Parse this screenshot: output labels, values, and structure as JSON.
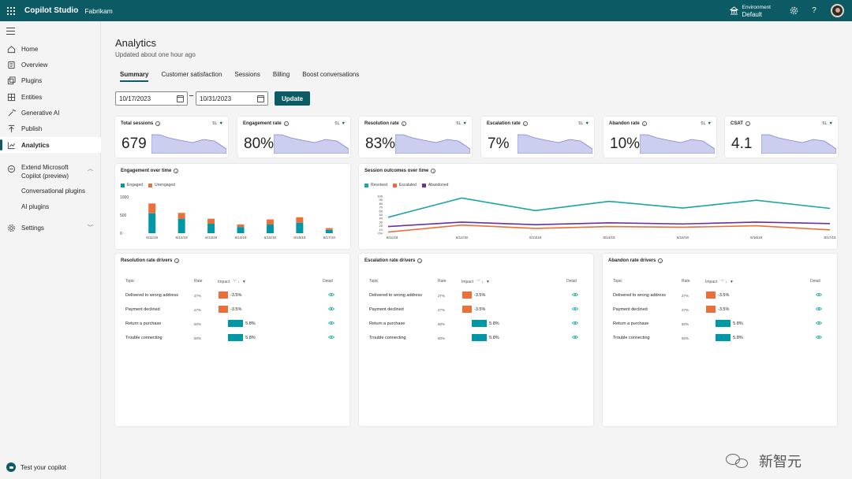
{
  "topbar": {
    "app_name": "Copilot Studio",
    "org_name": "Fabrikam",
    "environment_label": "Environment",
    "environment_value": "Default"
  },
  "sidebar": {
    "items": [
      {
        "label": "Home",
        "icon": "home-icon"
      },
      {
        "label": "Overview",
        "icon": "overview-icon"
      },
      {
        "label": "Plugins",
        "icon": "plugins-icon"
      },
      {
        "label": "Entities",
        "icon": "entities-icon"
      },
      {
        "label": "Generative AI",
        "icon": "sparkle-icon"
      },
      {
        "label": "Publish",
        "icon": "publish-icon"
      },
      {
        "label": "Analytics",
        "icon": "analytics-icon",
        "active": true
      }
    ],
    "extend_label_1": "Extend Microsoft",
    "extend_label_2": "Copilot (preview)",
    "sub_items": [
      "Conversational plugins",
      "AI plugins"
    ],
    "settings_label": "Settings",
    "test_label": "Test your copilot"
  },
  "page": {
    "title": "Analytics",
    "updated": "Updated about one hour ago",
    "tabs": [
      "Summary",
      "Customer satisfaction",
      "Sessions",
      "Billing",
      "Boost conversations"
    ],
    "start_date": "10/17/2023",
    "end_date": "10/31/2023",
    "update_label": "Update"
  },
  "kpis": [
    {
      "title": "Total sessions",
      "value": "679",
      "range": "5L"
    },
    {
      "title": "Engagement rate",
      "value": "80%",
      "range": "5L"
    },
    {
      "title": "Resolution rate",
      "value": "83%",
      "range": "5L"
    },
    {
      "title": "Escalation rate",
      "value": "7%",
      "range": "5L"
    },
    {
      "title": "Abandon rate",
      "value": "10%",
      "range": "5L"
    },
    {
      "title": "CSAT",
      "value": "4.1",
      "range": "5L"
    }
  ],
  "colors": {
    "brand": "#0c5a64",
    "engaged": "#0097a7",
    "unengaged": "#e8703a",
    "resolved": "#1aa5a5",
    "escalated": "#e8703a",
    "abandoned": "#6b2fa0",
    "spark": "#b9bdea"
  },
  "engagement_panel": {
    "title": "Engagement over time",
    "legend": [
      "Engaged",
      "Unengaged"
    ]
  },
  "outcomes_panel": {
    "title": "Session outcomes over time",
    "legend": [
      "Resolved",
      "Escalated",
      "Abandoned"
    ]
  },
  "chart_data": [
    {
      "type": "bar",
      "title": "Engagement over time",
      "stacked": true,
      "categories": [
        "6/11/19",
        "6/12/19",
        "6/13/19",
        "6/14/19",
        "6/15/19",
        "6/16/19",
        "6/17/19"
      ],
      "series": [
        {
          "name": "Engaged",
          "values": [
            550,
            400,
            260,
            170,
            240,
            290,
            90
          ]
        },
        {
          "name": "Unengaged",
          "values": [
            270,
            160,
            140,
            70,
            140,
            150,
            50
          ]
        }
      ],
      "yticks": [
        "1000",
        "500",
        "0"
      ],
      "ylim": [
        0,
        1000
      ],
      "legend": "top-left"
    },
    {
      "type": "line",
      "title": "Session outcomes over time",
      "categories": [
        "6/11/19",
        "6/12/19",
        "6/13/19",
        "6/14/19",
        "6/15/19",
        "6/16/19",
        "6/17/19"
      ],
      "series": [
        {
          "name": "Resolved",
          "values": [
            43,
            95,
            61,
            86,
            68,
            89,
            67
          ]
        },
        {
          "name": "Escalated",
          "values": [
            3,
            22,
            13,
            18,
            16,
            20,
            9
          ]
        },
        {
          "name": "Abandoned",
          "values": [
            18,
            30,
            23,
            28,
            25,
            30,
            26
          ]
        }
      ],
      "yticks": [
        "100",
        "90",
        "80",
        "70",
        "60",
        "50",
        "40",
        "30",
        "20",
        "10",
        "0%"
      ],
      "ylim": [
        0,
        100
      ],
      "legend": "top-left"
    }
  ],
  "drivers": [
    {
      "title": "Resolution rate drivers",
      "headers": {
        "topic": "Topic",
        "rate": "Rate",
        "impact": "Impact",
        "detail": "Detail"
      },
      "rows": [
        {
          "topic": "Delivered to wrong address",
          "rate": "27%",
          "impact": -3.5,
          "impact_label": "-3.5%"
        },
        {
          "topic": "Payment declined",
          "rate": "27%",
          "impact": -3.5,
          "impact_label": "-3.5%"
        },
        {
          "topic": "Return a purchase",
          "rate": "50%",
          "impact": 5.8,
          "impact_label": "5.8%"
        },
        {
          "topic": "Trouble connecting",
          "rate": "50%",
          "impact": 5.8,
          "impact_label": "5.8%"
        }
      ]
    },
    {
      "title": "Escalation rate drivers",
      "headers": {
        "topic": "Topic",
        "rate": "Rate",
        "impact": "Impact",
        "detail": "Detail"
      },
      "rows": [
        {
          "topic": "Delivered to wrong address",
          "rate": "27%",
          "impact": -3.5,
          "impact_label": "-3.5%"
        },
        {
          "topic": "Payment declined",
          "rate": "27%",
          "impact": -3.5,
          "impact_label": "-3.5%"
        },
        {
          "topic": "Return a purchase",
          "rate": "50%",
          "impact": 5.8,
          "impact_label": "5.8%"
        },
        {
          "topic": "Trouble connecting",
          "rate": "50%",
          "impact": 5.8,
          "impact_label": "5.8%"
        }
      ]
    },
    {
      "title": "Abandon rate drivers",
      "headers": {
        "topic": "Topic",
        "rate": "Rate",
        "impact": "Impact",
        "detail": "Detail"
      },
      "rows": [
        {
          "topic": "Delivered to wrong address",
          "rate": "27%",
          "impact": -3.5,
          "impact_label": "-3.5%"
        },
        {
          "topic": "Payment declined",
          "rate": "27%",
          "impact": -3.5,
          "impact_label": "-3.5%"
        },
        {
          "topic": "Return a purchase",
          "rate": "50%",
          "impact": 5.8,
          "impact_label": "5.8%"
        },
        {
          "topic": "Trouble connecting",
          "rate": "50%",
          "impact": 5.8,
          "impact_label": "5.8%"
        }
      ]
    }
  ],
  "watermark": "新智元"
}
